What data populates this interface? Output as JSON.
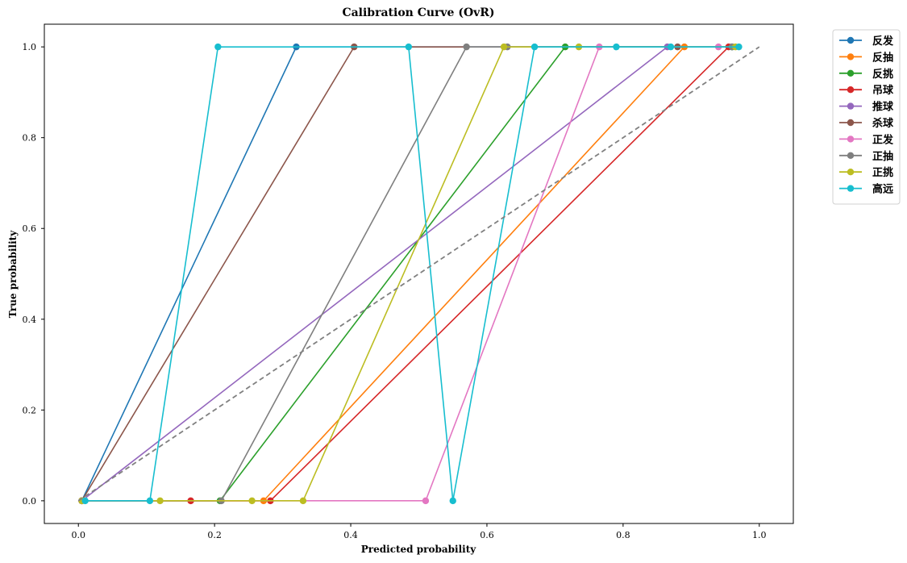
{
  "chart_data": {
    "type": "line",
    "title": "Calibration Curve (OvR)",
    "xlabel": "Predicted probability",
    "ylabel": "True probability",
    "xlim": [
      -0.05,
      1.05
    ],
    "ylim": [
      -0.05,
      1.05
    ],
    "x_ticks": [
      "0.0",
      "0.2",
      "0.4",
      "0.6",
      "0.8",
      "1.0"
    ],
    "y_ticks": [
      "0.0",
      "0.2",
      "0.4",
      "0.6",
      "0.8",
      "1.0"
    ],
    "grid": false,
    "legend_position": "outside-top-right",
    "reference_line": {
      "style": "dashed",
      "color": "#808080",
      "points": [
        [
          0,
          0
        ],
        [
          1,
          1
        ]
      ]
    },
    "series": [
      {
        "name": "反发",
        "color": "#1f77b4",
        "x": [
          0.005,
          0.32,
          0.96
        ],
        "y": [
          0,
          1,
          1
        ]
      },
      {
        "name": "反抽",
        "color": "#ff7f0e",
        "x": [
          0.005,
          0.272,
          0.89
        ],
        "y": [
          0,
          0,
          1
        ]
      },
      {
        "name": "反挑",
        "color": "#2ca02c",
        "x": [
          0.005,
          0.208,
          0.715,
          0.96
        ],
        "y": [
          0,
          0,
          1,
          1
        ]
      },
      {
        "name": "吊球",
        "color": "#d62728",
        "x": [
          0.005,
          0.165,
          0.282,
          0.955
        ],
        "y": [
          0,
          0,
          0,
          1
        ]
      },
      {
        "name": "推球",
        "color": "#9467bd",
        "x": [
          0.005,
          0.865
        ],
        "y": [
          0,
          1
        ]
      },
      {
        "name": "杀球",
        "color": "#8c564b",
        "x": [
          0.005,
          0.405,
          0.88
        ],
        "y": [
          0,
          1,
          1
        ]
      },
      {
        "name": "正发",
        "color": "#e377c2",
        "x": [
          0.005,
          0.51,
          0.765,
          0.94
        ],
        "y": [
          0,
          0,
          1,
          1
        ]
      },
      {
        "name": "正抽",
        "color": "#7f7f7f",
        "x": [
          0.005,
          0.21,
          0.57,
          0.63,
          0.96
        ],
        "y": [
          0,
          0,
          1,
          1,
          1
        ]
      },
      {
        "name": "正挑",
        "color": "#bcbd22",
        "x": [
          0.005,
          0.12,
          0.255,
          0.33,
          0.625,
          0.735,
          0.965
        ],
        "y": [
          0,
          0,
          0,
          0,
          1,
          1,
          1
        ]
      },
      {
        "name": "高远",
        "color": "#17becf",
        "x": [
          0.01,
          0.105,
          0.205,
          0.485,
          0.55,
          0.67,
          0.79,
          0.87,
          0.97
        ],
        "y": [
          0,
          0,
          1,
          1,
          0,
          1,
          1,
          1,
          1
        ]
      }
    ]
  }
}
